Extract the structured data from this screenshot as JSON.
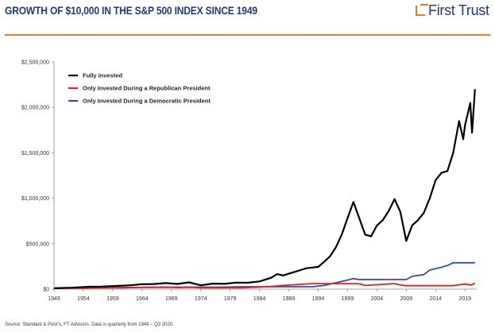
{
  "header": {
    "title": "GROWTH OF $10,000 IN THE S&P 500 INDEX SINCE 1949",
    "logo_text": "First Trust",
    "accent_color": "#e8782a",
    "brand_color": "#1f3a6e"
  },
  "chart_data": {
    "type": "line",
    "title": "",
    "xlabel": "",
    "ylabel": "",
    "xlim": [
      1949,
      2021
    ],
    "ylim": [
      0,
      2500000
    ],
    "x_ticks": [
      "1949",
      "1954",
      "1959",
      "1964",
      "1969",
      "1974",
      "1979",
      "1984",
      "1989",
      "1994",
      "1999",
      "2004",
      "2009",
      "2014",
      "2019"
    ],
    "y_ticks": [
      "$2,500,000",
      "$2,000,000",
      "$1,500,000",
      "$1,000,000",
      "$500,000",
      "$0"
    ],
    "legend_position": "top-left",
    "grid": false,
    "series": [
      {
        "name": "Fully invested",
        "color": "#000000",
        "points": [
          [
            1949,
            10000
          ],
          [
            1952,
            16000
          ],
          [
            1955,
            26000
          ],
          [
            1957,
            28000
          ],
          [
            1960,
            36000
          ],
          [
            1962,
            42000
          ],
          [
            1964,
            54000
          ],
          [
            1966,
            56000
          ],
          [
            1968,
            66000
          ],
          [
            1970,
            57000
          ],
          [
            1972,
            74000
          ],
          [
            1974,
            42000
          ],
          [
            1976,
            60000
          ],
          [
            1978,
            58000
          ],
          [
            1980,
            72000
          ],
          [
            1982,
            70000
          ],
          [
            1984,
            85000
          ],
          [
            1986,
            125000
          ],
          [
            1987,
            165000
          ],
          [
            1988,
            150000
          ],
          [
            1990,
            190000
          ],
          [
            1992,
            230000
          ],
          [
            1994,
            245000
          ],
          [
            1995,
            300000
          ],
          [
            1996,
            360000
          ],
          [
            1997,
            460000
          ],
          [
            1998,
            600000
          ],
          [
            1999,
            780000
          ],
          [
            2000,
            960000
          ],
          [
            2001,
            780000
          ],
          [
            2002,
            600000
          ],
          [
            2003,
            580000
          ],
          [
            2004,
            700000
          ],
          [
            2005,
            760000
          ],
          [
            2006,
            860000
          ],
          [
            2007,
            990000
          ],
          [
            2008,
            850000
          ],
          [
            2009,
            530000
          ],
          [
            2010,
            700000
          ],
          [
            2011,
            760000
          ],
          [
            2012,
            840000
          ],
          [
            2013,
            1000000
          ],
          [
            2014,
            1200000
          ],
          [
            2015,
            1280000
          ],
          [
            2016,
            1300000
          ],
          [
            2017,
            1500000
          ],
          [
            2018,
            1850000
          ],
          [
            2018.7,
            1650000
          ],
          [
            2019,
            1800000
          ],
          [
            2019.9,
            2050000
          ],
          [
            2020.2,
            1720000
          ],
          [
            2020.7,
            2200000
          ]
        ]
      },
      {
        "name": "Only Invested During a Republican President",
        "color": "#e01e1e",
        "points": [
          [
            1949,
            10000
          ],
          [
            1953,
            10000
          ],
          [
            1961,
            18000
          ],
          [
            1969,
            18000
          ],
          [
            1970,
            17000
          ],
          [
            1972,
            20000
          ],
          [
            1974,
            14000
          ],
          [
            1977,
            15000
          ],
          [
            1981,
            15000
          ],
          [
            1984,
            22000
          ],
          [
            1986,
            30000
          ],
          [
            1988,
            40000
          ],
          [
            1990,
            48000
          ],
          [
            1993,
            60000
          ],
          [
            1999,
            60000
          ],
          [
            2001,
            58000
          ],
          [
            2002,
            40000
          ],
          [
            2004,
            48000
          ],
          [
            2007,
            60000
          ],
          [
            2008,
            45000
          ],
          [
            2009,
            38000
          ],
          [
            2017,
            38000
          ],
          [
            2018,
            48000
          ],
          [
            2019,
            55000
          ],
          [
            2020,
            45000
          ],
          [
            2020.7,
            65000
          ]
        ]
      },
      {
        "name": "Only Invested During a Democratic President",
        "color": "#2f4f9e",
        "points": [
          [
            1949,
            10000
          ],
          [
            1953,
            14000
          ],
          [
            1961,
            14000
          ],
          [
            1965,
            22000
          ],
          [
            1969,
            22000
          ],
          [
            1977,
            22000
          ],
          [
            1981,
            26000
          ],
          [
            1993,
            26000
          ],
          [
            1995,
            40000
          ],
          [
            1997,
            70000
          ],
          [
            1999,
            100000
          ],
          [
            2000,
            115000
          ],
          [
            2001,
            105000
          ],
          [
            2009,
            105000
          ],
          [
            2010,
            140000
          ],
          [
            2012,
            160000
          ],
          [
            2013,
            210000
          ],
          [
            2015,
            240000
          ],
          [
            2016,
            260000
          ],
          [
            2017,
            290000
          ],
          [
            2020.7,
            290000
          ]
        ]
      }
    ]
  },
  "footer": {
    "source": "Source: Standard & Poor's, FT Advisors. Data is quarterly from 1949 – Q3 2020."
  }
}
